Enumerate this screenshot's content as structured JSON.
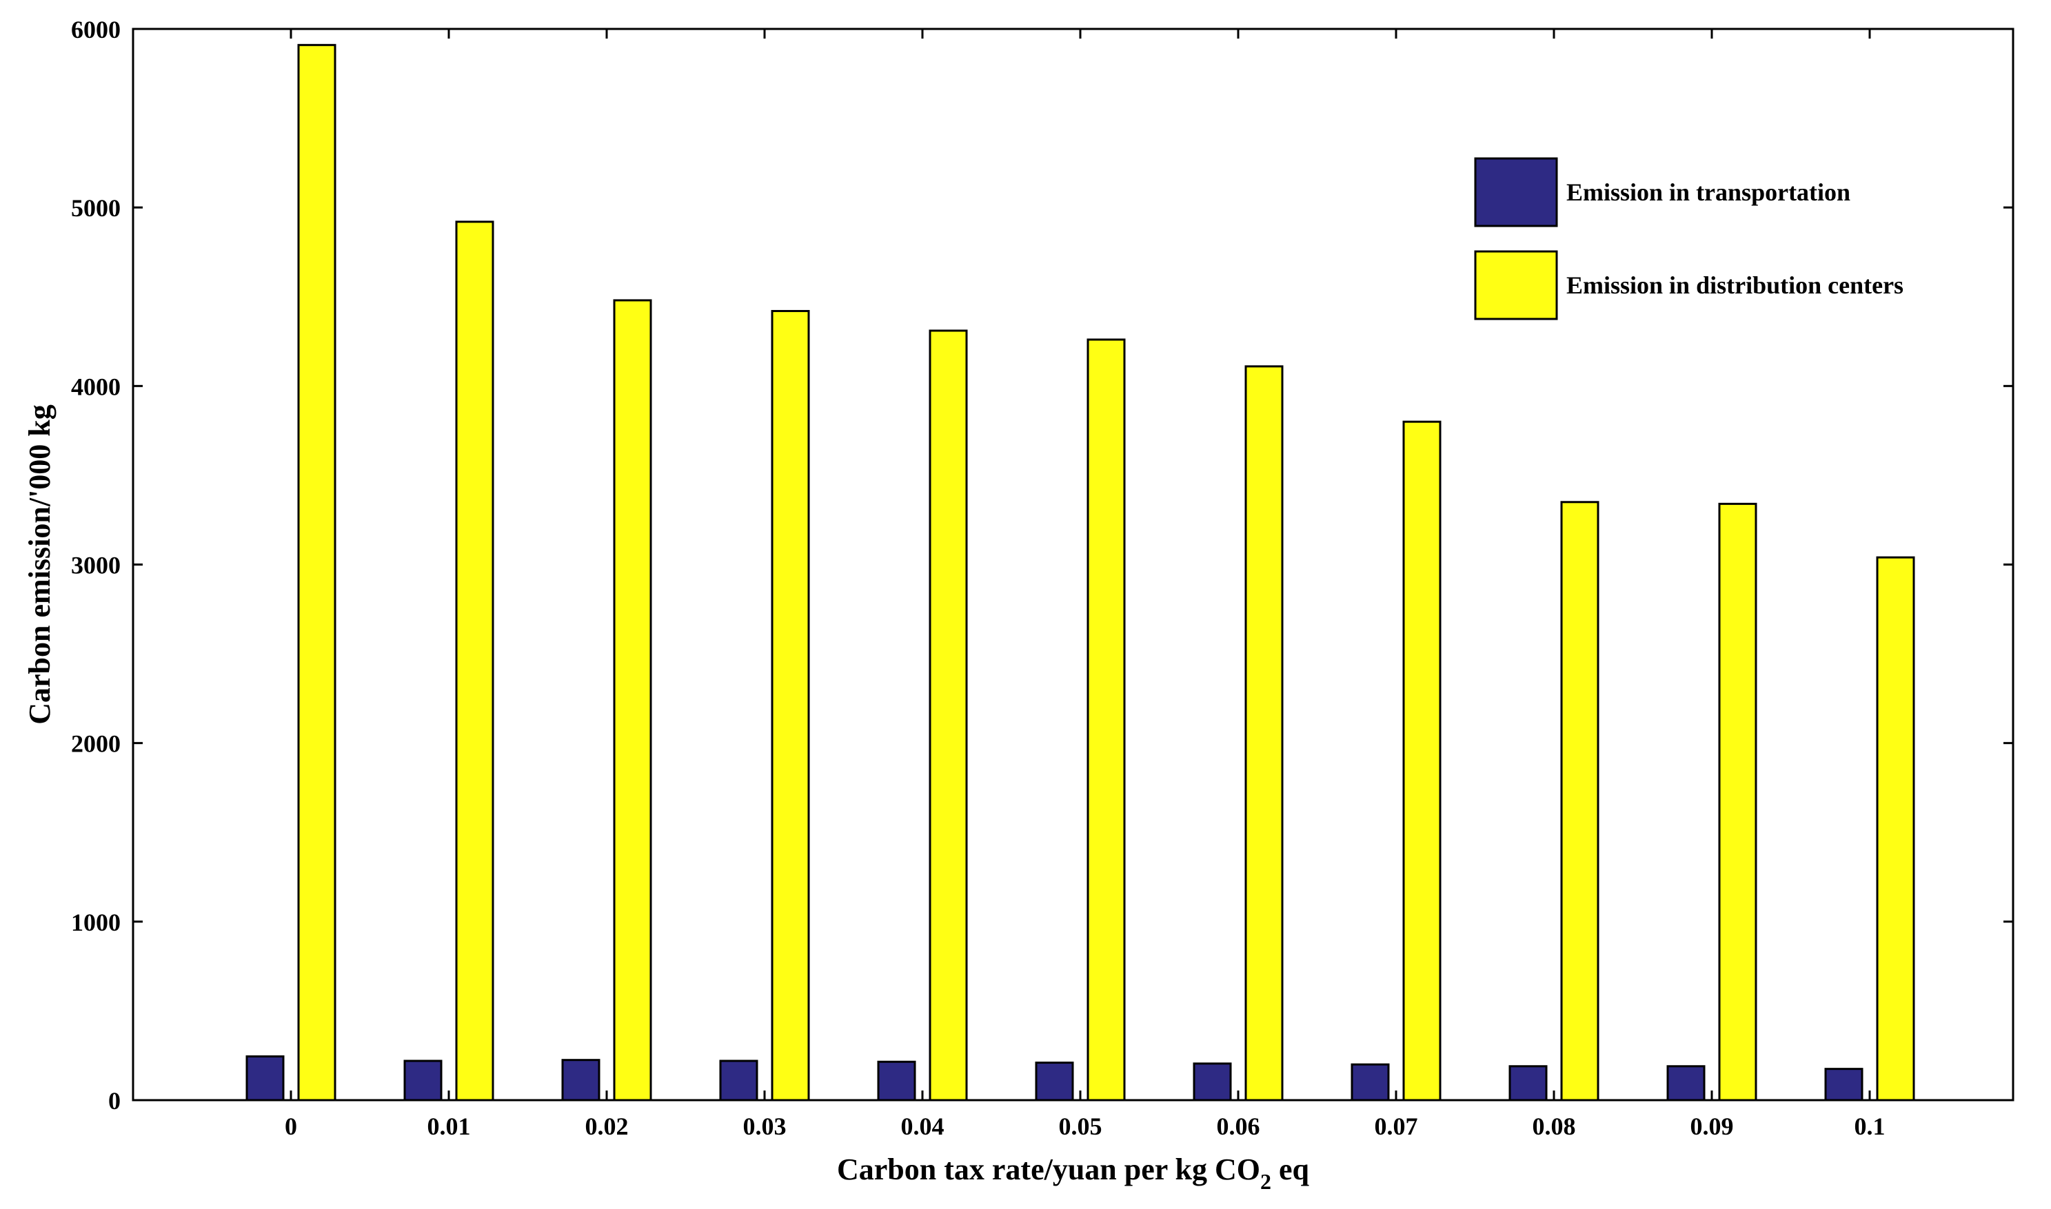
{
  "chart_data": {
    "type": "bar",
    "title": "",
    "xlabel_main": "Carbon tax rate/yuan per kg CO",
    "xlabel_sub": "2",
    "xlabel_tail": " eq",
    "ylabel": "Carbon emission/'000 kg",
    "categories": [
      "0",
      "0.01",
      "0.02",
      "0.03",
      "0.04",
      "0.05",
      "0.06",
      "0.07",
      "0.08",
      "0.09",
      "0.1"
    ],
    "ylim": [
      0,
      6000
    ],
    "yticks": [
      "0",
      "1000",
      "2000",
      "3000",
      "4000",
      "5000",
      "6000"
    ],
    "grid": false,
    "legend_position": "top-right",
    "series": [
      {
        "name": "Emission in transportation",
        "color": "#2e2a84",
        "values": [
          245,
          220,
          225,
          220,
          215,
          210,
          205,
          200,
          190,
          190,
          175
        ]
      },
      {
        "name": "Emission in distribution centers",
        "color": "#ffff14",
        "values": [
          5910,
          4920,
          4480,
          4420,
          4310,
          4260,
          4110,
          3800,
          3350,
          3340,
          3040
        ]
      }
    ]
  }
}
